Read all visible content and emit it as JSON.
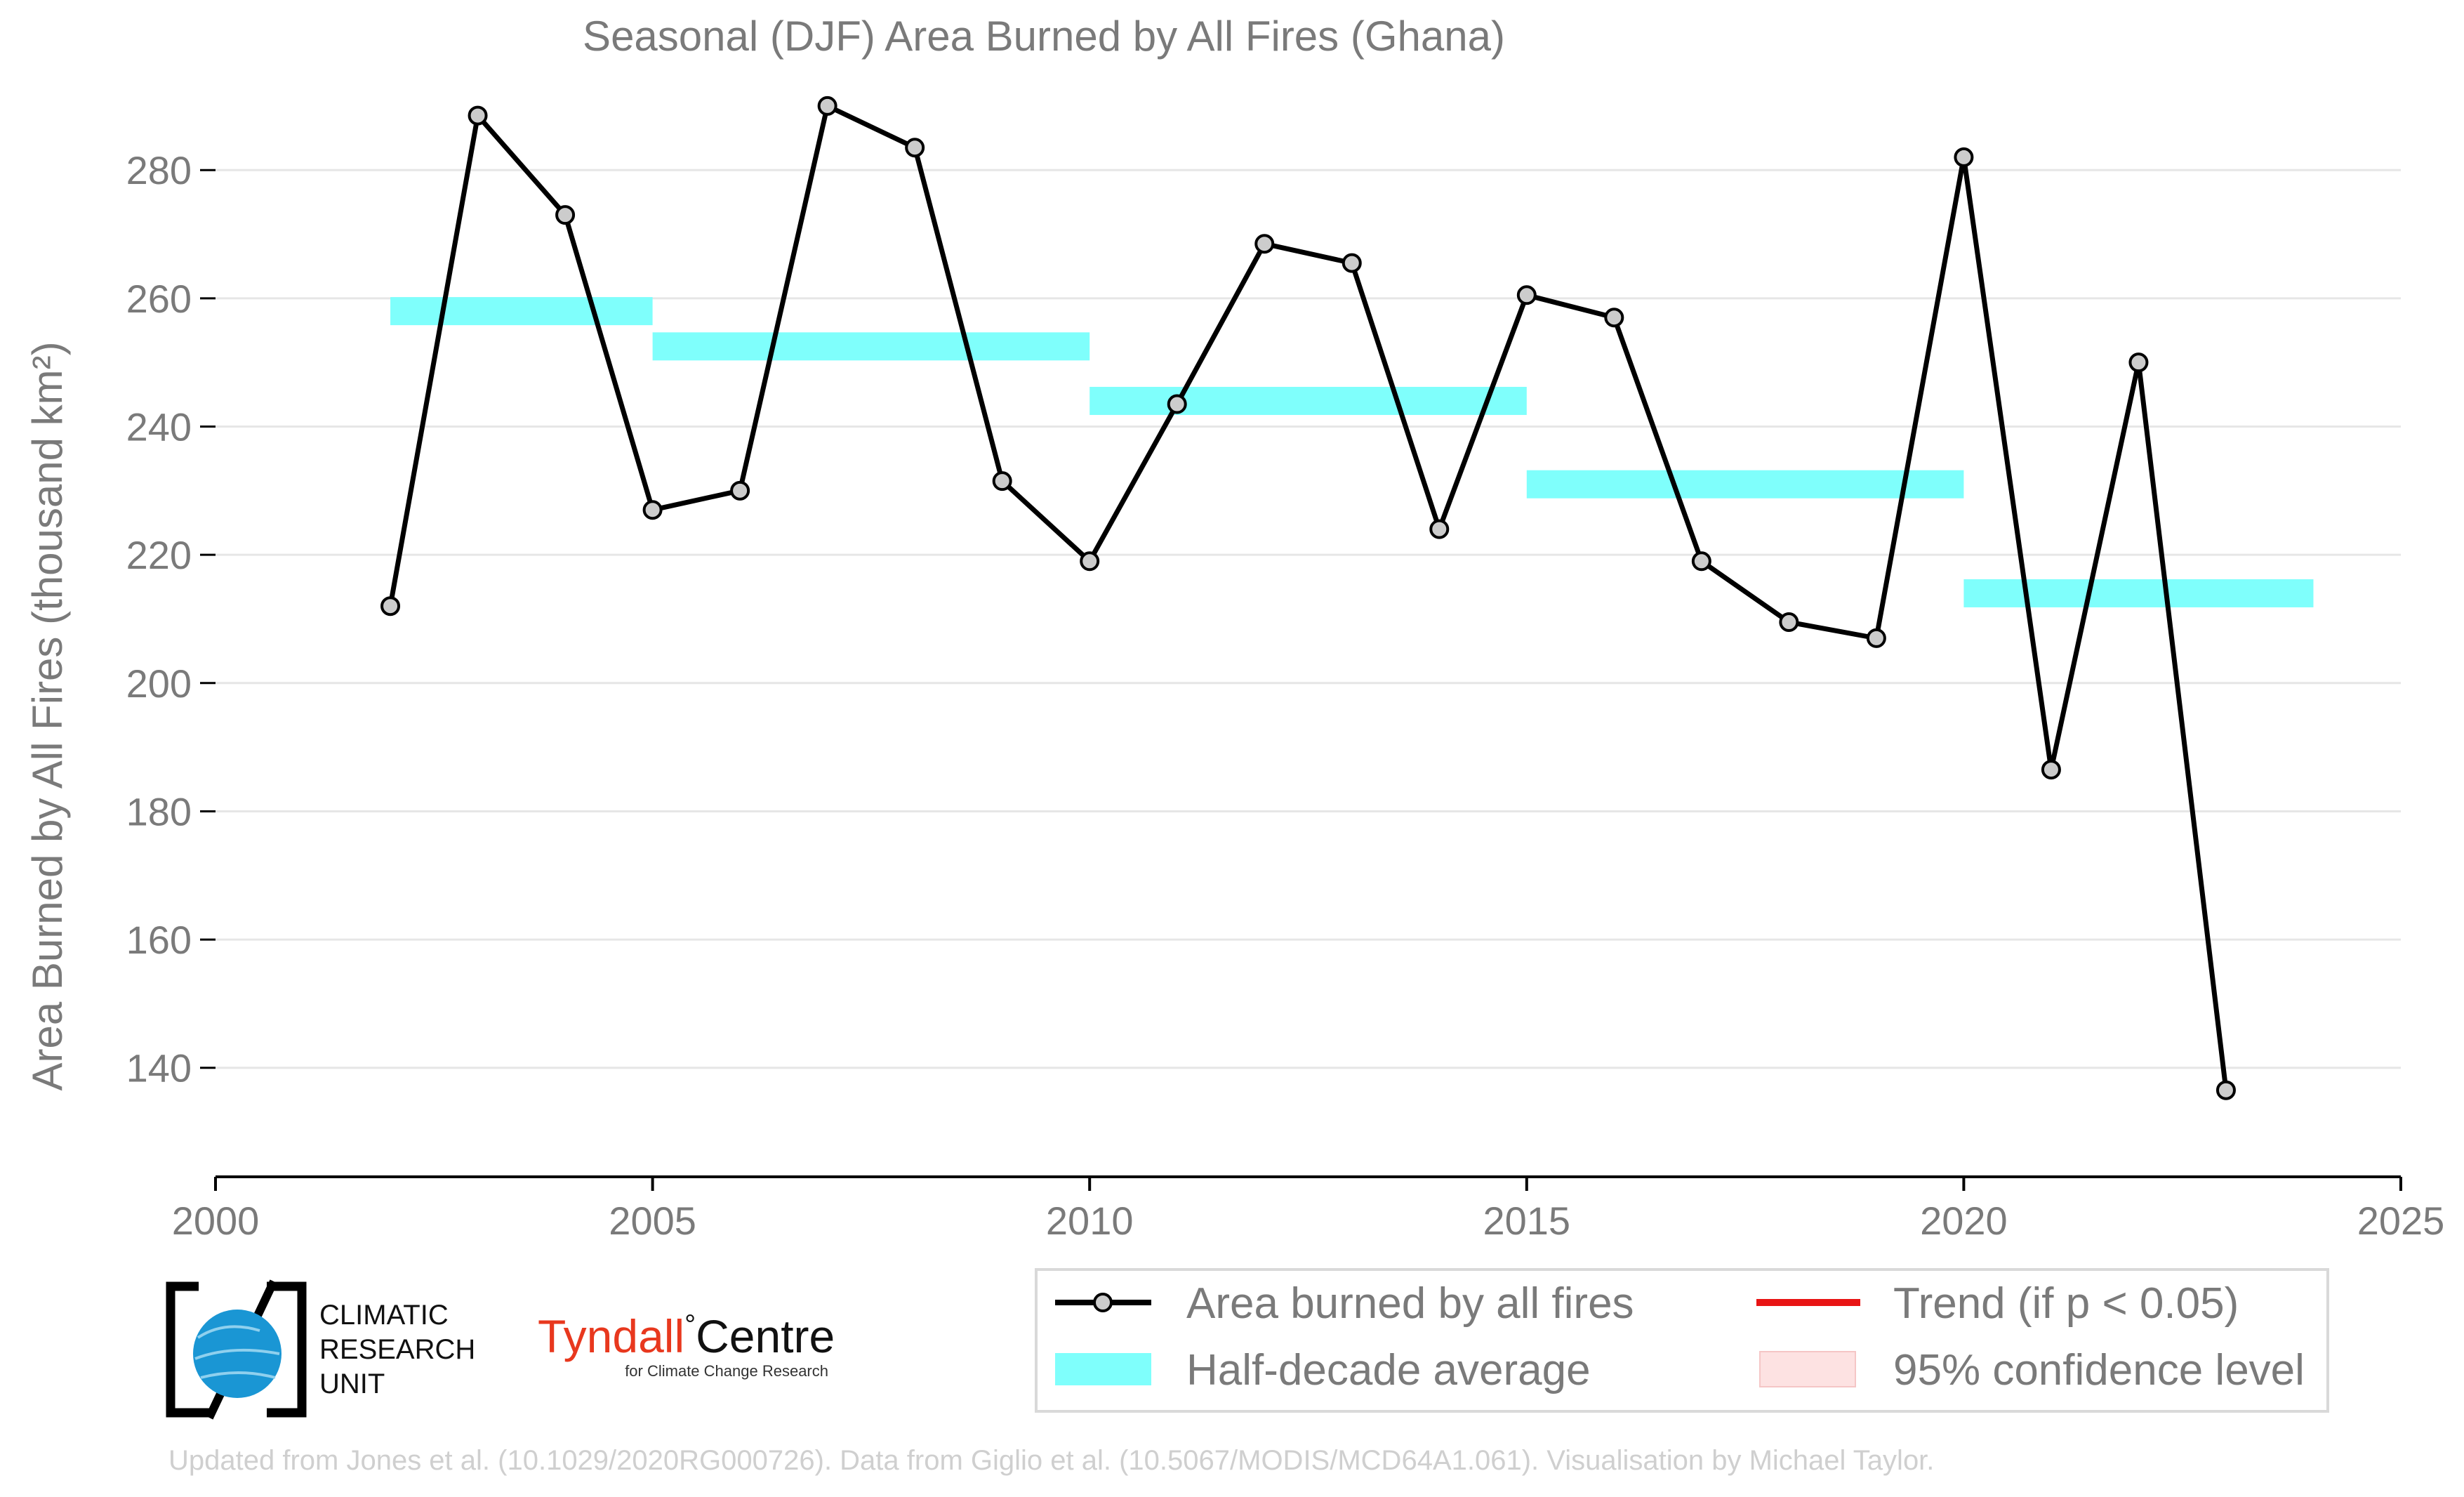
{
  "chart_data": {
    "type": "line",
    "title": "Seasonal (DJF) Area Burned by All Fires (Ghana)",
    "ylabel": "Area Burned by All Fires (thousand km²)",
    "xlabel": "",
    "xlim": [
      2000,
      2025
    ],
    "ylim": [
      123,
      289
    ],
    "x_ticks": [
      2000,
      2005,
      2010,
      2015,
      2020,
      2025
    ],
    "y_ticks": [
      140,
      160,
      180,
      200,
      220,
      240,
      260,
      280
    ],
    "grid": "horizontal",
    "series": [
      {
        "name": "Area burned by all fires",
        "color": "#000000",
        "marker_fill": "#cccccc",
        "x": [
          2002,
          2003,
          2004,
          2005,
          2006,
          2007,
          2008,
          2009,
          2010,
          2011,
          2012,
          2013,
          2014,
          2015,
          2016,
          2017,
          2018,
          2019,
          2020,
          2021,
          2022,
          2023
        ],
        "y": [
          212,
          288.5,
          273,
          227,
          230,
          290,
          283.5,
          231.5,
          219,
          243.5,
          268.5,
          265.5,
          224,
          260.5,
          257,
          219,
          209.5,
          207,
          282,
          186.5,
          250,
          136.5
        ]
      }
    ],
    "half_decade_averages": {
      "name": "Half-decade average",
      "color": "#7ffffc",
      "segments": [
        {
          "x0": 2002,
          "x1": 2005,
          "y": 258
        },
        {
          "x0": 2005,
          "x1": 2010,
          "y": 252.5
        },
        {
          "x0": 2010,
          "x1": 2015,
          "y": 244
        },
        {
          "x0": 2015,
          "x1": 2020,
          "y": 231
        },
        {
          "x0": 2020,
          "x1": 2024,
          "y": 214
        }
      ]
    },
    "legend": {
      "placement": "bottom-right",
      "entries": [
        {
          "label": "Area burned by all fires",
          "style": "line-marker",
          "color": "#000000"
        },
        {
          "label": "Trend (if p < 0.05)",
          "style": "line",
          "color": "#e81414"
        },
        {
          "label": "Half-decade average",
          "style": "band",
          "color": "#7ffffc"
        },
        {
          "label": "95% confidence level",
          "style": "band",
          "color": "#fde2e2"
        }
      ]
    }
  },
  "logos": {
    "cru": [
      "CLIMATIC",
      "RESEARCH",
      "UNIT"
    ],
    "tyndall_main": "Tyndall",
    "tyndall_degree": "°",
    "tyndall_centre": "Centre",
    "tyndall_sub": "for Climate Change Research"
  },
  "footer": "Updated from Jones et al. (10.1029/2020RG000726). Data from Giglio et al. (10.5067/MODIS/MCD64A1.061). Visualisation by Michael Taylor."
}
